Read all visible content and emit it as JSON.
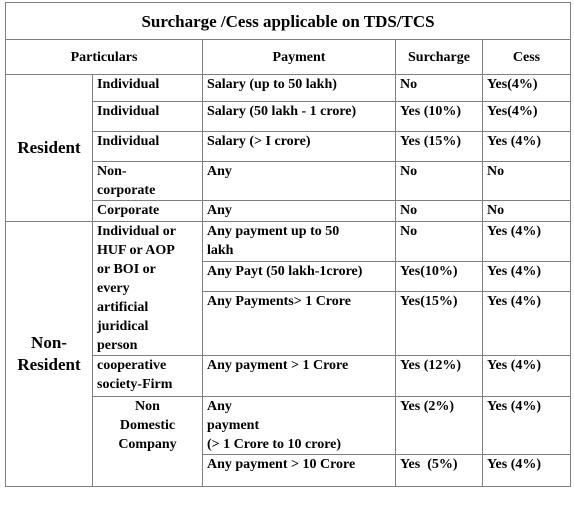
{
  "title": "Surcharge /Cess applicable on TDS/TCS",
  "headers": {
    "particulars": "Particulars",
    "payment": "Payment",
    "surcharge": "Surcharge",
    "cess": "Cess"
  },
  "resident": {
    "label": "Resident",
    "rows": [
      {
        "particular": "Individual",
        "payment": "Salary (up to 50 lakh)",
        "surcharge": "No",
        "cess": "Yes(4%)"
      },
      {
        "particular": "Individual",
        "payment": "Salary (50 lakh - 1 crore)",
        "surcharge": "Yes (10%)",
        "cess": "Yes(4%)"
      },
      {
        "particular": "Individual",
        "payment": "Salary (> I crore)",
        "surcharge": "Yes (15%)",
        "cess": "Yes (4%)"
      },
      {
        "particular": "Non-\ncorporate",
        "payment": "Any",
        "surcharge": "No",
        "cess": "No"
      },
      {
        "particular": "Corporate",
        "payment": "Any",
        "surcharge": "No",
        "cess": "No"
      }
    ]
  },
  "non_resident": {
    "label": "Non-\nResident",
    "individual_group": {
      "particular": "Individual or\nHUF or AOP\nor BOI or\nevery\nartificial\njuridical\nperson",
      "rows": [
        {
          "payment": "Any payment  up to 50\nlakh",
          "surcharge": "No",
          "cess": "Yes (4%)"
        },
        {
          "payment": "Any Payt (50 lakh-1crore)",
          "surcharge": "Yes(10%)",
          "cess": "Yes (4%)"
        },
        {
          "payment": "Any Payments> 1 Crore",
          "surcharge": "Yes(15%)",
          "cess": "Yes (4%)"
        }
      ]
    },
    "coop": {
      "particular": "cooperative\nsociety-Firm",
      "payment": "Any payment > 1 Crore",
      "surcharge": "Yes (12%)",
      "cess": "Yes (4%)"
    },
    "company_group": {
      "particular": "Non\nDomestic\nCompany",
      "rows": [
        {
          "payment": "Any\npayment\n(> 1 Crore to 10 crore)",
          "surcharge": "Yes (2%)",
          "cess": "Yes (4%)"
        },
        {
          "payment": "Any payment > 10 Crore",
          "surcharge": "Yes  (5%)",
          "cess": "Yes (4%)"
        }
      ]
    }
  }
}
